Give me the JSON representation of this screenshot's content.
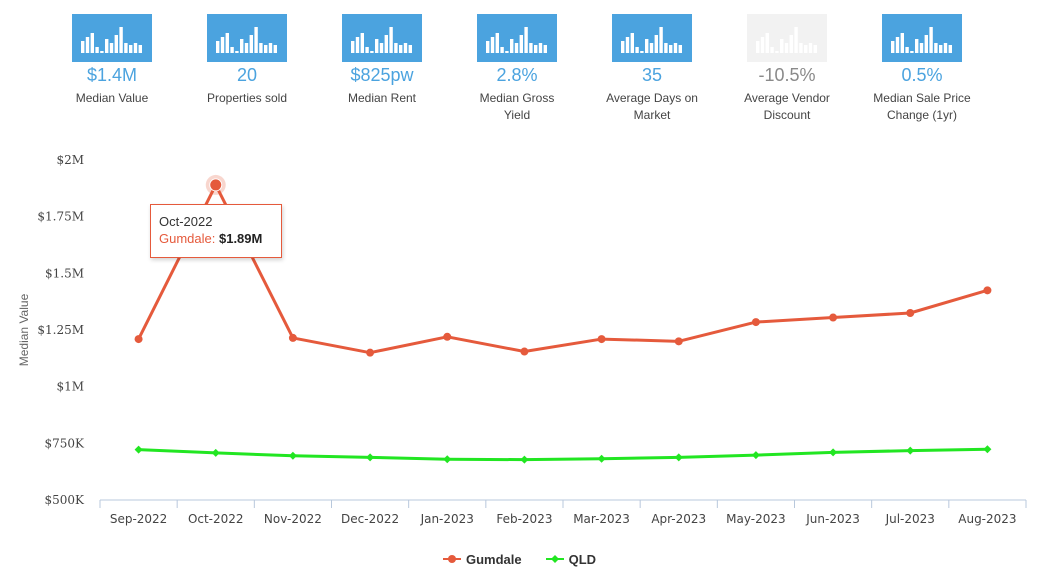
{
  "stats": [
    {
      "value": "$1.4M",
      "label_lines": [
        "Median Value"
      ],
      "dim": false
    },
    {
      "value": "20",
      "label_lines": [
        "Properties sold"
      ],
      "dim": false
    },
    {
      "value": "$825pw",
      "label_lines": [
        "Median Rent"
      ],
      "dim": false
    },
    {
      "value": "2.8%",
      "label_lines": [
        "Median Gross",
        "Yield"
      ],
      "dim": false
    },
    {
      "value": "35",
      "label_lines": [
        "Average Days on",
        "Market"
      ],
      "dim": false
    },
    {
      "value": "-10.5%",
      "label_lines": [
        "Average Vendor",
        "Discount"
      ],
      "dim": true
    },
    {
      "value": "0.5%",
      "label_lines": [
        "Median Sale Price",
        "Change (1yr)"
      ],
      "dim": false
    }
  ],
  "icons": {
    "stat": "bar-chart-icon"
  },
  "colors": {
    "accent": "#4ba3df",
    "gumdale": "#e55a3c",
    "qld": "#22e622",
    "axis": "#b8c8dc"
  },
  "chart_data": {
    "type": "line",
    "ylabel": "Median Value",
    "xlabel": "",
    "categories": [
      "Sep-2022",
      "Oct-2022",
      "Nov-2022",
      "Dec-2022",
      "Jan-2023",
      "Feb-2023",
      "Mar-2023",
      "Apr-2023",
      "May-2023",
      "Jun-2023",
      "Jul-2023",
      "Aug-2023"
    ],
    "ylim": [
      500000,
      2000000
    ],
    "yticks": [
      500000,
      750000,
      1000000,
      1250000,
      1500000,
      1750000,
      2000000
    ],
    "ytick_labels": [
      "$500K",
      "$750K",
      "$1M",
      "$1.25M",
      "$1.5M",
      "$1.75M",
      "$2M"
    ],
    "series": [
      {
        "name": "Gumdale",
        "color": "#e55a3c",
        "values": [
          1210000,
          1890000,
          1215000,
          1150000,
          1220000,
          1155000,
          1210000,
          1200000,
          1285000,
          1305000,
          1325000,
          1425000
        ]
      },
      {
        "name": "QLD",
        "color": "#22e622",
        "values": [
          722000,
          708000,
          695000,
          688000,
          680000,
          678000,
          682000,
          688000,
          698000,
          710000,
          718000,
          724000
        ]
      }
    ],
    "grid": false,
    "legend_position": "bottom-center",
    "tooltip": {
      "date": "Oct-2022",
      "series": "Gumdale",
      "value": "$1.89M",
      "index": 1
    }
  }
}
